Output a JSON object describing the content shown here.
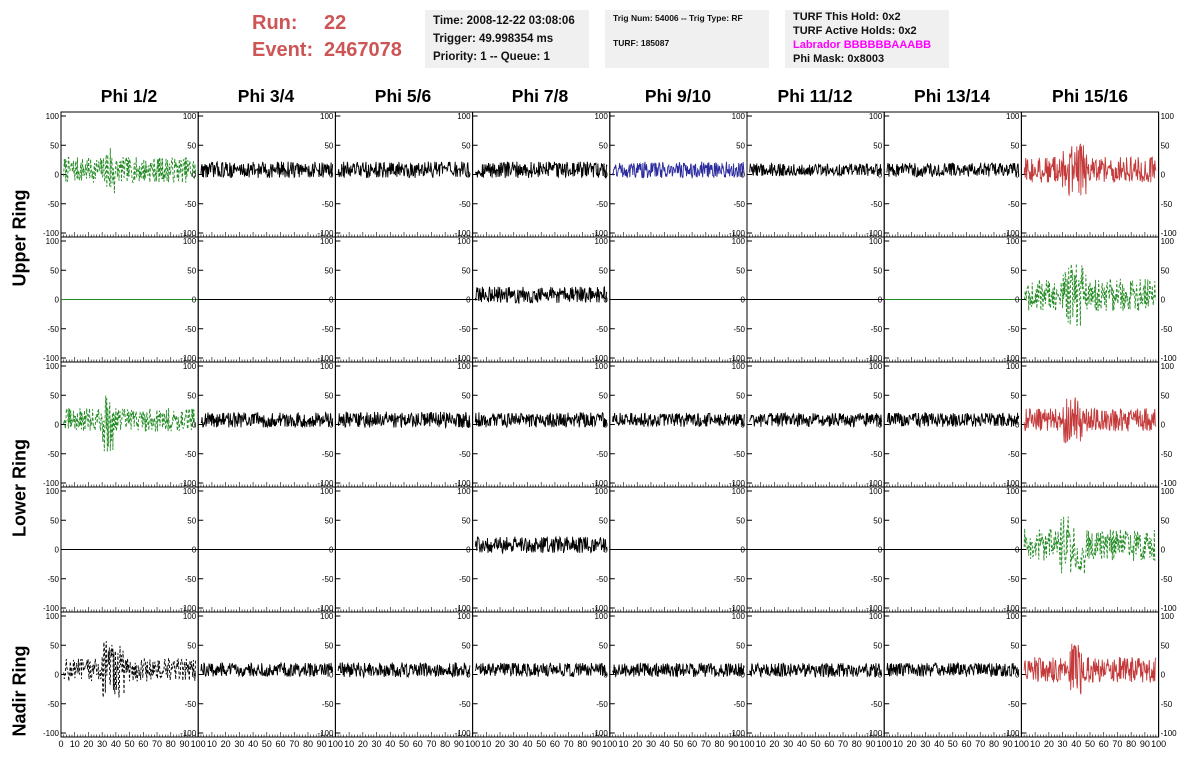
{
  "header": {
    "run_label": "Run:",
    "run_value": "22",
    "event_label": "Event:",
    "event_value": "2467078",
    "accent_color": "#cd5555"
  },
  "info_time": {
    "time": "Time: 2008-12-22 03:08:06",
    "trigger": "Trigger: 49.998354 ms",
    "priority": "Priority: 1 -- Queue: 1"
  },
  "info_trig": {
    "trig": "Trig Num: 54006 -- Trig Type: RF",
    "turf": "TURF: 185087"
  },
  "info_turf": {
    "this_hold": "TURF This Hold: 0x2",
    "active_holds": "TURF Active Holds: 0x2",
    "labrador": "Labrador BBBBBBAAABB",
    "phi_mask": "Phi Mask: 0x8003",
    "labrador_color": "#ff00ff"
  },
  "phi_labels": [
    "Phi 1/2",
    "Phi 3/4",
    "Phi 5/6",
    "Phi 7/8",
    "Phi 9/10",
    "Phi 11/12",
    "Phi 13/14",
    "Phi 15/16"
  ],
  "ring_labels": {
    "upper": "Upper Ring",
    "lower": "Lower Ring",
    "nadir": "Nadir Ring"
  },
  "chart_data": {
    "type": "line",
    "xlim": [
      0,
      100
    ],
    "ylim": [
      -100,
      100
    ],
    "x_ticks": [
      0,
      10,
      20,
      30,
      40,
      50,
      60,
      70,
      80,
      90,
      100
    ],
    "y_ticks": [
      -100,
      -50,
      0,
      50,
      100
    ],
    "colors": {
      "black": "#000000",
      "green": "#228b22",
      "blue": "#2b2b9e",
      "red": "#c43a3a"
    },
    "rows": [
      [
        {
          "color": "green",
          "style": "dashed",
          "amp": 22,
          "burst": [
            33,
            40
          ],
          "burst_amp": 50
        },
        {
          "color": "black",
          "style": "solid",
          "amp": 14
        },
        {
          "color": "black",
          "style": "solid",
          "amp": 14
        },
        {
          "color": "black",
          "style": "solid",
          "amp": 14
        },
        {
          "color": "blue",
          "style": "solid",
          "amp": 14
        },
        {
          "color": "black",
          "style": "solid",
          "amp": 11
        },
        {
          "color": "black",
          "style": "solid",
          "amp": 12
        },
        {
          "color": "red",
          "style": "solid",
          "amp": 22,
          "burst": [
            30,
            48
          ],
          "burst_amp": 45
        }
      ],
      [
        {
          "color": "green",
          "style": "flat",
          "amp": 0
        },
        {
          "color": "black",
          "style": "flat",
          "amp": 0
        },
        {
          "color": "black",
          "style": "flat",
          "amp": 0
        },
        {
          "color": "black",
          "style": "solid",
          "amp": 14
        },
        {
          "color": "black",
          "style": "flat",
          "amp": 0
        },
        {
          "color": "black",
          "style": "flat",
          "amp": 0
        },
        {
          "color": "green",
          "style": "flat",
          "amp": 0
        },
        {
          "color": "green",
          "style": "dashed",
          "amp": 28,
          "burst": [
            30,
            48
          ],
          "burst_amp": 55
        }
      ],
      [
        {
          "color": "green",
          "style": "dashed",
          "amp": 20,
          "burst": [
            30,
            38
          ],
          "burst_amp": 60
        },
        {
          "color": "black",
          "style": "solid",
          "amp": 13
        },
        {
          "color": "black",
          "style": "solid",
          "amp": 14
        },
        {
          "color": "black",
          "style": "solid",
          "amp": 13
        },
        {
          "color": "black",
          "style": "solid",
          "amp": 12
        },
        {
          "color": "black",
          "style": "solid",
          "amp": 12
        },
        {
          "color": "black",
          "style": "solid",
          "amp": 12
        },
        {
          "color": "red",
          "style": "solid",
          "amp": 20,
          "burst": [
            30,
            45
          ],
          "burst_amp": 40
        }
      ],
      [
        {
          "color": "black",
          "style": "flat",
          "amp": 0
        },
        {
          "color": "black",
          "style": "flat",
          "amp": 0
        },
        {
          "color": "black",
          "style": "flat",
          "amp": 0
        },
        {
          "color": "black",
          "style": "solid",
          "amp": 14
        },
        {
          "color": "black",
          "style": "flat",
          "amp": 0
        },
        {
          "color": "black",
          "style": "flat",
          "amp": 0
        },
        {
          "color": "black",
          "style": "flat",
          "amp": 0
        },
        {
          "color": "green",
          "style": "dashed",
          "amp": 28,
          "burst": [
            28,
            48
          ],
          "burst_amp": 50
        }
      ],
      [
        {
          "color": "black",
          "style": "dashed",
          "amp": 20,
          "burst": [
            30,
            46
          ],
          "burst_amp": 50
        },
        {
          "color": "black",
          "style": "solid",
          "amp": 12
        },
        {
          "color": "black",
          "style": "solid",
          "amp": 13
        },
        {
          "color": "black",
          "style": "solid",
          "amp": 12
        },
        {
          "color": "black",
          "style": "solid",
          "amp": 12
        },
        {
          "color": "black",
          "style": "solid",
          "amp": 12
        },
        {
          "color": "black",
          "style": "solid",
          "amp": 12
        },
        {
          "color": "red",
          "style": "solid",
          "amp": 22,
          "burst": [
            34,
            44
          ],
          "burst_amp": 45
        }
      ]
    ]
  }
}
